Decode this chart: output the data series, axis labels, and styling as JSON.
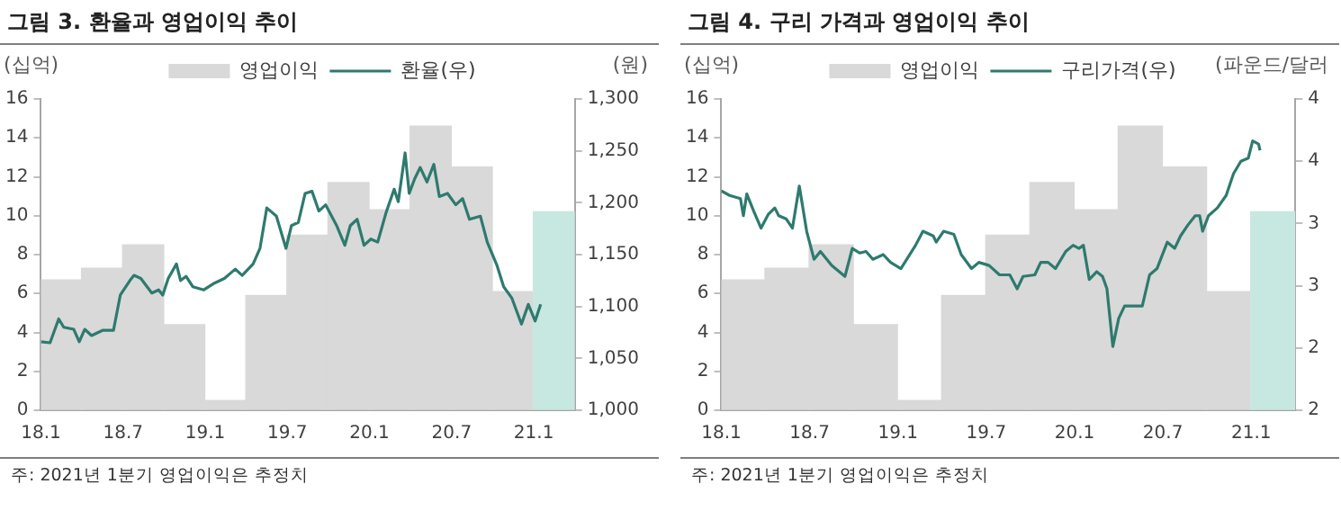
{
  "chart_data": [
    {
      "type": "bar",
      "title": "그림 3. 환율과 영업이익 추이",
      "ylabel": "(십억)",
      "y2label": "(원)",
      "annotations": [
        "주: 2021년 1분기 영업이익은 추정치"
      ],
      "legend": "top",
      "xlim": [
        "2018-01",
        "2021-04"
      ],
      "xticks": [
        {
          "value": "2018-01",
          "label": "18.1"
        },
        {
          "value": "2018-07",
          "label": "18.7"
        },
        {
          "value": "2019-01",
          "label": "19.1"
        },
        {
          "value": "2019-07",
          "label": "19.7"
        },
        {
          "value": "2020-01",
          "label": "20.1"
        },
        {
          "value": "2020-07",
          "label": "20.7"
        },
        {
          "value": "2021-01",
          "label": "21.1"
        }
      ],
      "ylim": [
        0,
        16
      ],
      "yticks": [
        0,
        2,
        4,
        6,
        8,
        10,
        12,
        14,
        16
      ],
      "y2lim": [
        1000,
        1300
      ],
      "y2ticks": [
        {
          "value": 1000,
          "label": "1,000"
        },
        {
          "value": 1050,
          "label": "1,050"
        },
        {
          "value": 1100,
          "label": "1,100"
        },
        {
          "value": 1150,
          "label": "1,150"
        },
        {
          "value": 1200,
          "label": "1,200"
        },
        {
          "value": 1250,
          "label": "1,250"
        },
        {
          "value": 1300,
          "label": "1,300"
        }
      ],
      "series": [
        {
          "name": "영업이익",
          "colors": [
            "#d9d9d9",
            "#d9d9d9",
            "#d9d9d9",
            "#d9d9d9",
            "#d9d9d9",
            "#d9d9d9",
            "#d9d9d9",
            "#d9d9d9",
            "#d9d9d9",
            "#d9d9d9",
            "#d9d9d9",
            "#d9d9d9",
            "#c6e8e1"
          ],
          "x": [
            "2018-02-15",
            "2018-05-15",
            "2018-08-15",
            "2018-11-15",
            "2019-02-15",
            "2019-05-15",
            "2019-08-15",
            "2019-11-15",
            "2020-02-15",
            "2020-05-15",
            "2020-08-15",
            "2020-11-15",
            "2021-02-15"
          ],
          "values": [
            6.7,
            7.3,
            8.5,
            4.4,
            0.5,
            5.9,
            9.0,
            11.7,
            10.3,
            14.6,
            12.5,
            6.1,
            10.2
          ]
        },
        {
          "name": "환율(우)",
          "type": "line",
          "axis": "y2",
          "color": "#2e7a6e",
          "x": [
            "2018-01-01",
            "2018-01-21",
            "2018-02-10",
            "2018-02-21",
            "2018-03-13",
            "2018-03-25",
            "2018-04-07",
            "2018-04-22",
            "2018-05-16",
            "2018-06-10",
            "2018-06-25",
            "2018-07-16",
            "2018-07-25",
            "2018-08-10",
            "2018-09-04",
            "2018-09-19",
            "2018-09-28",
            "2018-10-10",
            "2018-10-28",
            "2018-11-07",
            "2018-11-19",
            "2018-12-04",
            "2018-12-28",
            "2019-01-19",
            "2019-02-13",
            "2019-03-07",
            "2019-03-22",
            "2019-04-16",
            "2019-05-01",
            "2019-05-16",
            "2019-06-07",
            "2019-06-28",
            "2019-07-10",
            "2019-07-25",
            "2019-08-10",
            "2019-08-25",
            "2019-09-10",
            "2019-09-25",
            "2019-10-19",
            "2019-11-07",
            "2019-11-19",
            "2019-12-04",
            "2019-12-19",
            "2020-01-04",
            "2020-01-19",
            "2020-02-07",
            "2020-02-25",
            "2020-03-04",
            "2020-03-19",
            "2020-03-28",
            "2020-04-10",
            "2020-04-22",
            "2020-05-07",
            "2020-05-22",
            "2020-06-04",
            "2020-06-22",
            "2020-07-10",
            "2020-07-25",
            "2020-08-10",
            "2020-09-04",
            "2020-09-19",
            "2020-10-10",
            "2020-10-25",
            "2020-11-13",
            "2020-12-04",
            "2020-12-19",
            "2021-01-04",
            "2021-01-16"
          ],
          "values": [
            1066,
            1065,
            1088,
            1080,
            1078,
            1066,
            1078,
            1072,
            1077,
            1077,
            1111,
            1125,
            1130,
            1127,
            1113,
            1116,
            1111,
            1127,
            1141,
            1125,
            1129,
            1119,
            1116,
            1122,
            1127,
            1136,
            1130,
            1141,
            1156,
            1195,
            1187,
            1156,
            1178,
            1181,
            1209,
            1211,
            1192,
            1198,
            1178,
            1159,
            1178,
            1184,
            1159,
            1165,
            1162,
            1190,
            1213,
            1201,
            1248,
            1209,
            1223,
            1234,
            1220,
            1237,
            1206,
            1209,
            1198,
            1204,
            1184,
            1187,
            1162,
            1140,
            1119,
            1108,
            1083,
            1102,
            1086,
            1102
          ]
        }
      ]
    },
    {
      "type": "bar",
      "title": "그림 4. 구리 가격과 영업이익 추이",
      "ylabel": "(십억)",
      "y2label": "(파운드/달러",
      "annotations": [
        "주: 2021년 1분기 영업이익은 추정치"
      ],
      "legend": "top",
      "xlim": [
        "2018-01",
        "2021-04"
      ],
      "xticks": [
        {
          "value": "2018-01",
          "label": "18.1"
        },
        {
          "value": "2018-07",
          "label": "18.7"
        },
        {
          "value": "2019-01",
          "label": "19.1"
        },
        {
          "value": "2019-07",
          "label": "19.7"
        },
        {
          "value": "2020-01",
          "label": "20.1"
        },
        {
          "value": "2020-07",
          "label": "20.7"
        },
        {
          "value": "2021-01",
          "label": "21.1"
        }
      ],
      "ylim": [
        0,
        16
      ],
      "yticks": [
        0,
        2,
        4,
        6,
        8,
        10,
        12,
        14,
        16
      ],
      "y2lim": [
        2,
        4
      ],
      "y2ticks": [
        2,
        {
          "value": 2.4,
          "label": "2"
        },
        {
          "value": 2.8,
          "label": "3"
        },
        {
          "value": 3.2,
          "label": "3"
        },
        {
          "value": 3.6,
          "label": "4"
        },
        4
      ],
      "series": [
        {
          "name": "영업이익",
          "colors": [
            "#d9d9d9",
            "#d9d9d9",
            "#d9d9d9",
            "#d9d9d9",
            "#d9d9d9",
            "#d9d9d9",
            "#d9d9d9",
            "#d9d9d9",
            "#d9d9d9",
            "#d9d9d9",
            "#d9d9d9",
            "#d9d9d9",
            "#c6e8e1"
          ],
          "x": [
            "2018-02-15",
            "2018-05-15",
            "2018-08-15",
            "2018-11-15",
            "2019-02-15",
            "2019-05-15",
            "2019-08-15",
            "2019-11-15",
            "2020-02-15",
            "2020-05-15",
            "2020-08-15",
            "2020-11-15",
            "2021-02-15"
          ],
          "values": [
            6.7,
            7.3,
            8.5,
            4.4,
            0.5,
            5.9,
            9.0,
            11.7,
            10.3,
            14.6,
            12.5,
            6.1,
            10.2
          ]
        },
        {
          "name": "구리가격(우)",
          "type": "line",
          "axis": "y2",
          "color": "#2e7a6e",
          "x": [
            "2018-01-01",
            "2018-01-18",
            "2018-02-10",
            "2018-02-16",
            "2018-02-23",
            "2018-03-07",
            "2018-03-22",
            "2018-04-07",
            "2018-04-20",
            "2018-04-28",
            "2018-05-13",
            "2018-05-26",
            "2018-06-10",
            "2018-06-25",
            "2018-07-10",
            "2018-07-23",
            "2018-08-16",
            "2018-09-13",
            "2018-09-28",
            "2018-10-13",
            "2018-10-26",
            "2018-11-10",
            "2018-12-01",
            "2018-12-16",
            "2019-01-07",
            "2019-02-07",
            "2019-02-22",
            "2019-03-13",
            "2019-03-19",
            "2019-04-04",
            "2019-04-25",
            "2019-05-10",
            "2019-06-01",
            "2019-06-16",
            "2019-07-07",
            "2019-07-28",
            "2019-08-19",
            "2019-09-04",
            "2019-09-16",
            "2019-10-10",
            "2019-10-22",
            "2019-11-07",
            "2019-11-22",
            "2019-12-13",
            "2019-12-28",
            "2020-01-10",
            "2020-01-19",
            "2020-02-01",
            "2020-02-16",
            "2020-02-28",
            "2020-03-07",
            "2020-03-19",
            "2020-04-01",
            "2020-04-13",
            "2020-05-04",
            "2020-05-19",
            "2020-06-04",
            "2020-06-19",
            "2020-07-10",
            "2020-07-25",
            "2020-08-07",
            "2020-08-22",
            "2020-09-07",
            "2020-09-16",
            "2020-09-22",
            "2020-10-04",
            "2020-10-22",
            "2020-11-10",
            "2020-11-25",
            "2020-12-10",
            "2020-12-25",
            "2021-01-04",
            "2021-01-16",
            "2021-01-19"
          ],
          "values": [
            3.41,
            3.38,
            3.36,
            3.25,
            3.39,
            3.28,
            3.17,
            3.26,
            3.3,
            3.25,
            3.23,
            3.17,
            3.44,
            3.15,
            2.97,
            3.02,
            2.93,
            2.86,
            3.04,
            3.01,
            3.02,
            2.97,
            3.0,
            2.95,
            2.91,
            3.06,
            3.15,
            3.12,
            3.08,
            3.15,
            3.13,
            3.0,
            2.91,
            2.95,
            2.93,
            2.87,
            2.87,
            2.78,
            2.86,
            2.87,
            2.95,
            2.95,
            2.91,
            3.02,
            3.06,
            3.04,
            3.06,
            2.84,
            2.89,
            2.86,
            2.78,
            2.41,
            2.59,
            2.67,
            2.67,
            2.67,
            2.87,
            2.91,
            3.08,
            3.04,
            3.12,
            3.19,
            3.25,
            3.25,
            3.15,
            3.25,
            3.3,
            3.38,
            3.52,
            3.6,
            3.62,
            3.73,
            3.71,
            3.67
          ]
        }
      ]
    }
  ]
}
